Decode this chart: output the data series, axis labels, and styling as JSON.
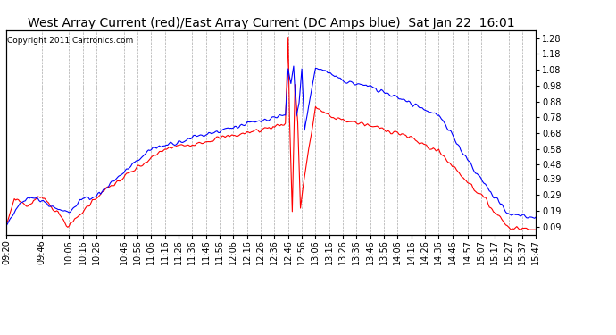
{
  "title": "West Array Current (red)/East Array Current (DC Amps blue)  Sat Jan 22  16:01",
  "copyright": "Copyright 2011 Cartronics.com",
  "ylabel_right_ticks": [
    0.09,
    0.19,
    0.29,
    0.39,
    0.48,
    0.58,
    0.68,
    0.78,
    0.88,
    0.98,
    1.08,
    1.18,
    1.28
  ],
  "ylim": [
    0.04,
    1.33
  ],
  "x_tick_labels": [
    "09:20",
    "09:46",
    "10:06",
    "10:16",
    "10:26",
    "10:46",
    "10:56",
    "11:06",
    "11:16",
    "11:26",
    "11:36",
    "11:46",
    "11:56",
    "12:06",
    "12:16",
    "12:26",
    "12:36",
    "12:46",
    "12:56",
    "13:06",
    "13:16",
    "13:26",
    "13:36",
    "13:46",
    "13:56",
    "14:06",
    "14:16",
    "14:26",
    "14:36",
    "14:46",
    "14:57",
    "15:07",
    "15:17",
    "15:27",
    "15:37",
    "15:47"
  ],
  "red_color": "#ff0000",
  "blue_color": "#0000ff",
  "bg_color": "#ffffff",
  "plot_bg_color": "#ffffff",
  "grid_color": "#aaaaaa",
  "title_fontsize": 10,
  "copyright_fontsize": 6.5,
  "tick_fontsize": 7,
  "linewidth": 0.8
}
